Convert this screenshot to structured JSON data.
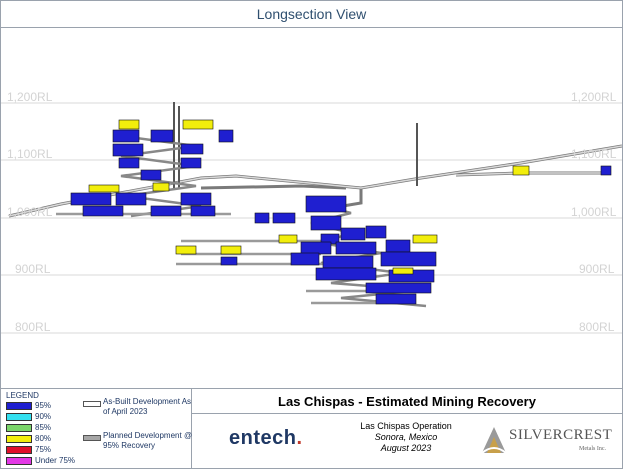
{
  "view_title": "Longsection View",
  "elevation_labels": [
    "1,200RL",
    "1,100RL",
    "1,000RL",
    "900RL",
    "800RL"
  ],
  "legend": {
    "title": "LEGEND",
    "items": [
      {
        "label": "95%",
        "color": "#1f1fd0"
      },
      {
        "label": "90%",
        "color": "#33e0f0"
      },
      {
        "label": "85%",
        "color": "#7bd66b"
      },
      {
        "label": "80%",
        "color": "#f2ee0c"
      },
      {
        "label": "75%",
        "color": "#e0102a"
      },
      {
        "label": "Under 75%",
        "color": "#e238e6"
      }
    ]
  },
  "development_legend": {
    "as_built": "As-Built Development As of April 2023",
    "planned": "Planned Development @ 95% Recovery"
  },
  "report_title": "Las Chispas - Estimated Mining Recovery",
  "operation": {
    "name": "Las Chispas Operation",
    "location": "Sonora, Mexico",
    "date": "August 2023"
  },
  "logos": {
    "entech": "entech",
    "silvercrest": "SILVERCREST",
    "silvercrest_sub": "Metals Inc."
  },
  "colors": {
    "stope_95": "#1f1fd0",
    "stope_80": "#f2ee0c",
    "development": "#a6a6a6",
    "frame": "#9aa2ad"
  }
}
